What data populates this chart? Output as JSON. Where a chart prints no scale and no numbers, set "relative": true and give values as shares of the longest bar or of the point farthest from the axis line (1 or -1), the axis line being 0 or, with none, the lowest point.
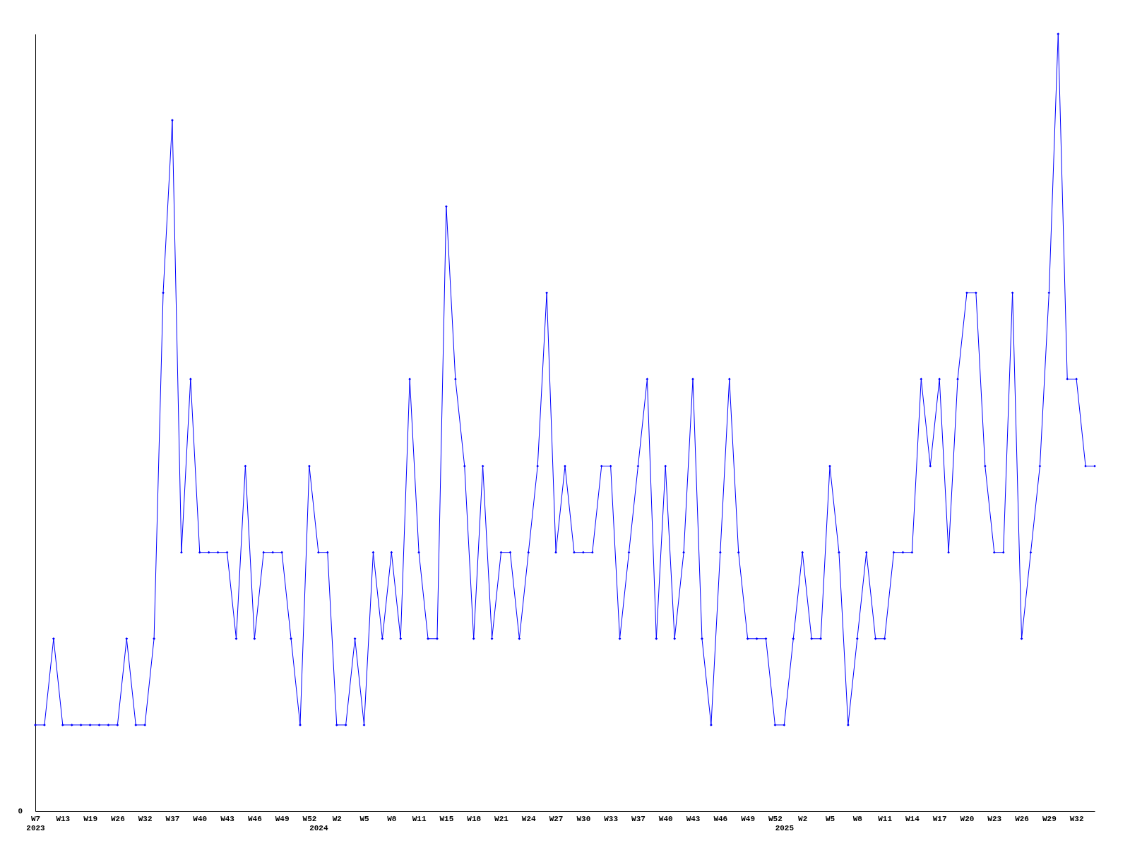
{
  "chart_data": {
    "type": "line",
    "relative": true,
    "categories": [
      "W7\n2023",
      null,
      null,
      "W13",
      null,
      null,
      "W19",
      null,
      null,
      "W26",
      null,
      null,
      "W32",
      null,
      null,
      "W37",
      null,
      null,
      "W40",
      null,
      null,
      "W43",
      null,
      null,
      "W46",
      null,
      null,
      "W49",
      null,
      null,
      "W52",
      "\n2024",
      null,
      "W2",
      null,
      null,
      "W5",
      null,
      null,
      "W8",
      null,
      null,
      "W11",
      null,
      null,
      "W15",
      null,
      null,
      "W18",
      null,
      null,
      "W21",
      null,
      null,
      "W24",
      null,
      null,
      "W27",
      null,
      null,
      "W30",
      null,
      null,
      "W33",
      null,
      null,
      "W37",
      null,
      null,
      "W40",
      null,
      null,
      "W43",
      null,
      null,
      "W46",
      null,
      null,
      "W49",
      null,
      null,
      "W52",
      "\n2025",
      null,
      "W2",
      null,
      null,
      "W5",
      null,
      null,
      "W8",
      null,
      null,
      "W11",
      null,
      null,
      "W14",
      null,
      null,
      "W17",
      null,
      null,
      "W20",
      null,
      null,
      "W23",
      null,
      null,
      "W26",
      null,
      null,
      "W29",
      null,
      null,
      "W32",
      null,
      null
    ],
    "series": [
      {
        "color": "#0000ff",
        "values": [
          0.111,
          0.111,
          0.222,
          0.111,
          0.111,
          0.111,
          0.111,
          0.111,
          0.111,
          0.111,
          0.222,
          0.111,
          0.111,
          0.222,
          0.667,
          0.889,
          0.333,
          0.556,
          0.333,
          0.333,
          0.333,
          0.333,
          0.222,
          0.444,
          0.222,
          0.333,
          0.333,
          0.333,
          0.222,
          0.111,
          0.444,
          0.333,
          0.333,
          0.111,
          0.111,
          0.222,
          0.111,
          0.333,
          0.222,
          0.333,
          0.222,
          0.556,
          0.333,
          0.222,
          0.222,
          0.778,
          0.556,
          0.444,
          0.222,
          0.444,
          0.222,
          0.333,
          0.333,
          0.222,
          0.333,
          0.444,
          0.667,
          0.333,
          0.444,
          0.333,
          0.333,
          0.333,
          0.444,
          0.444,
          0.222,
          0.333,
          0.444,
          0.556,
          0.222,
          0.444,
          0.222,
          0.333,
          0.556,
          0.222,
          0.111,
          0.333,
          0.556,
          0.333,
          0.222,
          0.222,
          0.222,
          0.111,
          0.111,
          0.222,
          0.333,
          0.222,
          0.222,
          0.444,
          0.333,
          0.111,
          0.222,
          0.333,
          0.222,
          0.222,
          0.333,
          0.333,
          0.333,
          0.556,
          0.444,
          0.556,
          0.333,
          0.556,
          0.667,
          0.667,
          0.444,
          0.333,
          0.333,
          0.667,
          0.222,
          0.333,
          0.444,
          0.667,
          1,
          0.556,
          0.556,
          0.444,
          0.444
        ]
      }
    ],
    "marker": "diamond",
    "grid": false,
    "line_style": "solid",
    "annotations": [
      "0"
    ]
  }
}
